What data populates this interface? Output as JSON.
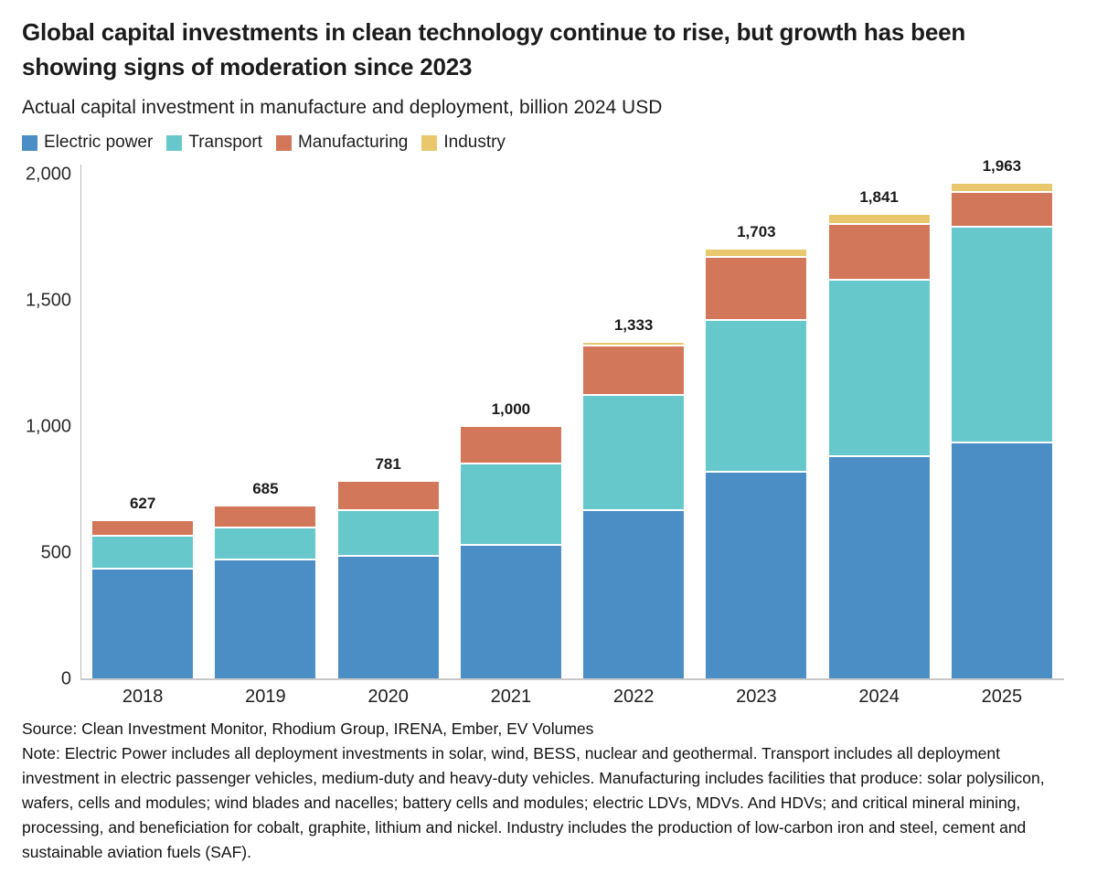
{
  "header": {
    "title": "Global capital investments in clean technology continue to rise, but growth has been showing signs of moderation since 2023",
    "subtitle": "Actual capital investment in manufacture and deployment, billion 2024 USD"
  },
  "legend": {
    "items": [
      {
        "label": "Electric power",
        "color": "#4b8ec5"
      },
      {
        "label": "Transport",
        "color": "#67c8cc"
      },
      {
        "label": "Manufacturing",
        "color": "#d3775a"
      },
      {
        "label": "Industry",
        "color": "#e9c86d"
      }
    ]
  },
  "chart_data": {
    "type": "bar",
    "stacked": true,
    "title": "Global capital investments in clean technology continue to rise, but growth has been showing signs of moderation since 2023",
    "subtitle": "Actual capital investment in manufacture and deployment, billion 2024 USD",
    "unit": "billion 2024 USD",
    "categories": [
      "2018",
      "2019",
      "2020",
      "2021",
      "2022",
      "2023",
      "2024",
      "2025"
    ],
    "series": [
      {
        "name": "Electric power",
        "color": "#4b8ec5",
        "values": [
          435,
          470,
          485,
          530,
          667,
          820,
          880,
          935
        ]
      },
      {
        "name": "Transport",
        "color": "#67c8cc",
        "values": [
          131,
          129,
          181,
          323,
          455,
          601,
          701,
          855
        ]
      },
      {
        "name": "Manufacturing",
        "color": "#d3775a",
        "values": [
          61,
          86,
          115,
          147,
          198,
          250,
          221,
          138
        ]
      },
      {
        "name": "Industry",
        "color": "#e9c86d",
        "values": [
          0,
          0,
          0,
          0,
          13,
          32,
          39,
          35
        ]
      }
    ],
    "totals": [
      627,
      685,
      781,
      1000,
      1333,
      1703,
      1841,
      1963
    ],
    "totals_formatted": [
      "627",
      "685",
      "781",
      "1,000",
      "1,333",
      "1,703",
      "1,841",
      "1,963"
    ],
    "ylim": [
      0,
      2000
    ],
    "yticks": [
      {
        "label": "0",
        "value": 0
      },
      {
        "label": "500",
        "value": 500
      },
      {
        "label": "1,000",
        "value": 1000
      },
      {
        "label": "1,500",
        "value": 1500
      },
      {
        "label": "2,000",
        "value": 2000
      }
    ],
    "grid": false,
    "legend_position": "top"
  },
  "footer": {
    "source": "Source: Clean Investment Monitor, Rhodium Group, IRENA, Ember, EV Volumes",
    "note": "Note: Electric Power includes all deployment investments in solar, wind, BESS, nuclear and geothermal. Transport includes all deployment investment in electric passenger vehicles, medium-duty and heavy-duty vehicles. Manufacturing includes facilities that produce: solar polysilicon, wafers, cells and modules; wind blades and nacelles; battery cells and modules; electric LDVs, MDVs. And HDVs; and critical mineral mining, processing, and beneficiation for cobalt, graphite, lithium and nickel. Industry includes the production of low-carbon iron and steel, cement and sustainable aviation fuels (SAF)."
  }
}
